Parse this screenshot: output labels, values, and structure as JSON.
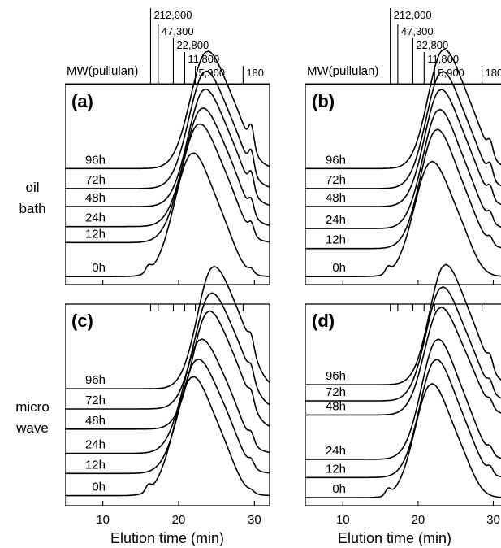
{
  "figure": {
    "row_labels": [
      {
        "line1": "oil",
        "line2": "bath"
      },
      {
        "line1": "micro",
        "line2": "wave"
      }
    ],
    "mw_axis": {
      "label": "MW(pullulan)",
      "markers": [
        {
          "label": "212,000",
          "x": 16.3
        },
        {
          "label": "47,300",
          "x": 17.3
        },
        {
          "label": "22,800",
          "x": 19.3
        },
        {
          "label": "11,800",
          "x": 20.8
        },
        {
          "label": "5,900",
          "x": 22.2
        },
        {
          "label": "180",
          "x": 28.5
        }
      ]
    }
  },
  "chart_data": [
    {
      "type": "line",
      "panel": "(a)",
      "xlabel": "",
      "xlim": [
        5,
        32
      ],
      "xticks": [
        10,
        20,
        30
      ],
      "show_xtick_labels": false,
      "ylabel": "",
      "series": [
        {
          "name": "0h",
          "baseline": 0.04,
          "height": 0.55,
          "center": 22.0,
          "width": 2.6,
          "bump": 0.03,
          "shoulder": 0.02,
          "skew": 0.3,
          "flat": 0.55
        },
        {
          "name": "12h",
          "baseline": 0.21,
          "height": 0.55,
          "center": 22.8,
          "width": 2.6,
          "bump": 0.0,
          "shoulder": 0.05,
          "skew": 0.35,
          "flat": 0.35
        },
        {
          "name": "24h",
          "baseline": 0.29,
          "height": 0.56,
          "center": 23.2,
          "width": 2.6,
          "bump": 0.0,
          "shoulder": 0.06,
          "skew": 0.4,
          "flat": 0.25
        },
        {
          "name": "48h",
          "baseline": 0.39,
          "height": 0.56,
          "center": 23.5,
          "width": 2.5,
          "bump": 0.0,
          "shoulder": 0.08,
          "skew": 0.45,
          "flat": 0.2
        },
        {
          "name": "72h",
          "baseline": 0.48,
          "height": 0.56,
          "center": 23.6,
          "width": 2.5,
          "bump": 0.0,
          "shoulder": 0.09,
          "skew": 0.45,
          "flat": 0.2
        },
        {
          "name": "96h",
          "baseline": 0.58,
          "height": 0.56,
          "center": 23.8,
          "width": 2.5,
          "bump": 0.0,
          "shoulder": 0.1,
          "skew": 0.45,
          "flat": 0.2
        }
      ]
    },
    {
      "type": "line",
      "panel": "(b)",
      "xlabel": "",
      "xlim": [
        5,
        32
      ],
      "xticks": [
        10,
        20,
        30
      ],
      "show_xtick_labels": false,
      "ylabel": "",
      "series": [
        {
          "name": "0h",
          "baseline": 0.04,
          "height": 0.56,
          "center": 21.8,
          "width": 2.5,
          "bump": 0.03,
          "shoulder": 0.0,
          "skew": 0.3,
          "flat": 0.1
        },
        {
          "name": "12h",
          "baseline": 0.18,
          "height": 0.58,
          "center": 22.5,
          "width": 2.4,
          "bump": 0.0,
          "shoulder": 0.03,
          "skew": 0.35,
          "flat": 0.1
        },
        {
          "name": "24h",
          "baseline": 0.28,
          "height": 0.58,
          "center": 22.8,
          "width": 2.4,
          "bump": 0.0,
          "shoulder": 0.04,
          "skew": 0.4,
          "flat": 0.1
        },
        {
          "name": "48h",
          "baseline": 0.39,
          "height": 0.57,
          "center": 23.0,
          "width": 2.4,
          "bump": 0.0,
          "shoulder": 0.05,
          "skew": 0.45,
          "flat": 0.1
        },
        {
          "name": "72h",
          "baseline": 0.48,
          "height": 0.57,
          "center": 23.2,
          "width": 2.4,
          "bump": 0.0,
          "shoulder": 0.06,
          "skew": 0.45,
          "flat": 0.1
        },
        {
          "name": "96h",
          "baseline": 0.58,
          "height": 0.58,
          "center": 23.4,
          "width": 2.4,
          "bump": 0.0,
          "shoulder": 0.06,
          "skew": 0.5,
          "flat": 0.1
        }
      ]
    },
    {
      "type": "line",
      "panel": "(c)",
      "xlabel": "Elution time (min)",
      "xlim": [
        5,
        32
      ],
      "xticks": [
        10,
        20,
        30
      ],
      "show_xtick_labels": true,
      "ylabel": "",
      "series": [
        {
          "name": "0h",
          "baseline": 0.05,
          "height": 0.53,
          "center": 22.0,
          "width": 2.6,
          "bump": 0.03,
          "shoulder": 0.01,
          "skew": 0.3,
          "flat": 0.5
        },
        {
          "name": "12h",
          "baseline": 0.16,
          "height": 0.53,
          "center": 22.6,
          "width": 2.6,
          "bump": 0.0,
          "shoulder": 0.03,
          "skew": 0.4,
          "flat": 0.3
        },
        {
          "name": "24h",
          "baseline": 0.26,
          "height": 0.54,
          "center": 23.0,
          "width": 2.6,
          "bump": 0.0,
          "shoulder": 0.04,
          "skew": 0.45,
          "flat": 0.2
        },
        {
          "name": "48h",
          "baseline": 0.38,
          "height": 0.57,
          "center": 24.0,
          "width": 2.5,
          "bump": 0.0,
          "shoulder": 0.05,
          "skew": 0.5,
          "flat": 0.1
        },
        {
          "name": "72h",
          "baseline": 0.48,
          "height": 0.56,
          "center": 24.3,
          "width": 2.5,
          "bump": 0.0,
          "shoulder": 0.05,
          "skew": 0.5,
          "flat": 0.1
        },
        {
          "name": "96h",
          "baseline": 0.58,
          "height": 0.59,
          "center": 24.6,
          "width": 2.5,
          "bump": 0.0,
          "shoulder": 0.06,
          "skew": 0.55,
          "flat": 0.1
        }
      ]
    },
    {
      "type": "line",
      "panel": "(d)",
      "xlabel": "Elution time (min)",
      "xlim": [
        5,
        32
      ],
      "xticks": [
        10,
        20,
        30
      ],
      "show_xtick_labels": true,
      "ylabel": "",
      "series": [
        {
          "name": "0h",
          "baseline": 0.04,
          "height": 0.55,
          "center": 21.8,
          "width": 2.4,
          "bump": 0.03,
          "shoulder": 0.0,
          "skew": 0.3,
          "flat": 0.1
        },
        {
          "name": "12h",
          "baseline": 0.14,
          "height": 0.57,
          "center": 22.4,
          "width": 2.4,
          "bump": 0.0,
          "shoulder": 0.03,
          "skew": 0.35,
          "flat": 0.1
        },
        {
          "name": "24h",
          "baseline": 0.23,
          "height": 0.58,
          "center": 22.6,
          "width": 2.4,
          "bump": 0.0,
          "shoulder": 0.03,
          "skew": 0.4,
          "flat": 0.1
        },
        {
          "name": "48h",
          "baseline": 0.45,
          "height": 0.52,
          "center": 23.0,
          "width": 2.4,
          "bump": 0.0,
          "shoulder": 0.03,
          "skew": 0.45,
          "flat": 0.1
        },
        {
          "name": "72h",
          "baseline": 0.52,
          "height": 0.55,
          "center": 23.2,
          "width": 2.4,
          "bump": 0.0,
          "shoulder": 0.04,
          "skew": 0.45,
          "flat": 0.1
        },
        {
          "name": "96h",
          "baseline": 0.6,
          "height": 0.58,
          "center": 23.6,
          "width": 2.4,
          "bump": 0.0,
          "shoulder": 0.05,
          "skew": 0.5,
          "flat": 0.1
        }
      ]
    }
  ]
}
